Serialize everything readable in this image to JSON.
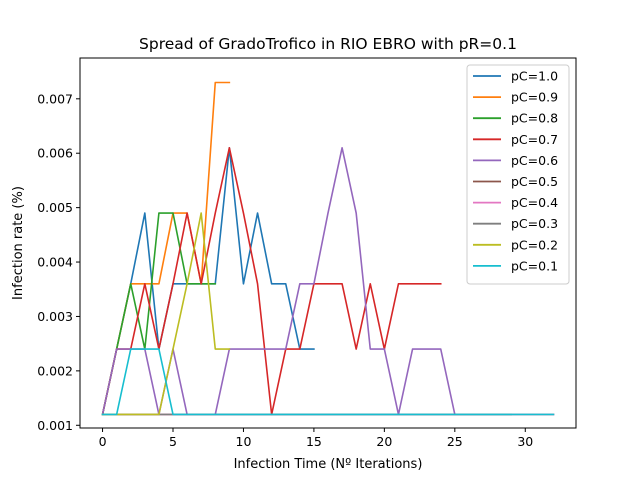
{
  "chart_data": {
    "type": "line",
    "title": "Spread of GradoTrofico in RIO EBRO with pR=0.1",
    "xlabel": "Infection Time (Nº Iterations)",
    "ylabel": "Infection rate (%)",
    "xlim": [
      -1.6,
      33.6
    ],
    "ylim": [
      0.00095,
      0.00775
    ],
    "xticks": [
      0,
      5,
      10,
      15,
      20,
      25,
      30
    ],
    "yticks": [
      0.001,
      0.002,
      0.003,
      0.004,
      0.005,
      0.006,
      0.007
    ],
    "ytick_labels": [
      "0.001",
      "0.002",
      "0.003",
      "0.004",
      "0.005",
      "0.006",
      "0.007"
    ],
    "legend_position": "top-right",
    "grid": false,
    "series": [
      {
        "name": "pC=1.0",
        "color": "#1f77b4",
        "x": [
          0,
          1,
          2,
          3,
          4,
          5,
          6,
          7,
          8,
          9,
          10,
          11,
          12,
          13,
          14,
          15
        ],
        "y": [
          0.0012,
          0.0024,
          0.0036,
          0.0049,
          0.0024,
          0.0036,
          0.0036,
          0.0036,
          0.0036,
          0.0061,
          0.0036,
          0.0049,
          0.0036,
          0.0036,
          0.0024,
          0.0024
        ]
      },
      {
        "name": "pC=0.9",
        "color": "#ff7f0e",
        "x": [
          0,
          1,
          2,
          3,
          4,
          5,
          6,
          7,
          8,
          9
        ],
        "y": [
          0.0012,
          0.0024,
          0.0036,
          0.0036,
          0.0036,
          0.0049,
          0.0049,
          0.0036,
          0.0073,
          0.0073
        ]
      },
      {
        "name": "pC=0.8",
        "color": "#2ca02c",
        "x": [
          0,
          1,
          2,
          3,
          4,
          5,
          6,
          7,
          8
        ],
        "y": [
          0.0012,
          0.0024,
          0.0036,
          0.0024,
          0.0049,
          0.0049,
          0.0036,
          0.0036,
          0.0036
        ]
      },
      {
        "name": "pC=0.7",
        "color": "#d62728",
        "x": [
          0,
          1,
          2,
          3,
          4,
          5,
          6,
          7,
          8,
          9,
          10,
          11,
          12,
          13,
          14,
          15,
          16,
          17,
          18,
          19,
          20,
          21,
          22,
          23,
          24
        ],
        "y": [
          0.0012,
          0.0024,
          0.0024,
          0.0036,
          0.0024,
          0.0036,
          0.0049,
          0.0036,
          0.0049,
          0.0061,
          0.0049,
          0.0036,
          0.0012,
          0.0024,
          0.0024,
          0.0036,
          0.0036,
          0.0036,
          0.0024,
          0.0036,
          0.0024,
          0.0036,
          0.0036,
          0.0036,
          0.0036
        ]
      },
      {
        "name": "pC=0.6",
        "color": "#9467bd",
        "x": [
          0,
          1,
          2,
          3,
          4,
          5,
          6,
          7,
          8,
          9,
          10,
          11,
          12,
          13,
          14,
          15,
          16,
          17,
          18,
          19,
          20,
          21,
          22,
          23,
          24,
          25,
          26,
          27,
          28,
          29
        ],
        "y": [
          0.0012,
          0.0024,
          0.0024,
          0.0024,
          0.0012,
          0.0024,
          0.0012,
          0.0012,
          0.0012,
          0.0024,
          0.0024,
          0.0024,
          0.0024,
          0.0024,
          0.0036,
          0.0036,
          0.0049,
          0.0061,
          0.0049,
          0.0024,
          0.0024,
          0.0012,
          0.0024,
          0.0024,
          0.0024,
          0.0012,
          0.0012,
          0.0012,
          0.0012,
          0.0012
        ]
      },
      {
        "name": "pC=0.5",
        "color": "#8c564b",
        "x": [
          0,
          1,
          2,
          3,
          4,
          5,
          6,
          7,
          8,
          9,
          10,
          11,
          12,
          13,
          14,
          15,
          16,
          17,
          18,
          19,
          20,
          21,
          22,
          23,
          24,
          25,
          26,
          27,
          28,
          29,
          30,
          31,
          32
        ],
        "y": [
          0.0012,
          0.0012,
          0.0012,
          0.0012,
          0.0012,
          0.0012,
          0.0012,
          0.0012,
          0.0012,
          0.0012,
          0.0012,
          0.0012,
          0.0012,
          0.0012,
          0.0012,
          0.0012,
          0.0012,
          0.0012,
          0.0012,
          0.0012,
          0.0012,
          0.0012,
          0.0012,
          0.0012,
          0.0012,
          0.0012,
          0.0012,
          0.0012,
          0.0012,
          0.0012,
          0.0012,
          0.0012,
          0.0012
        ]
      },
      {
        "name": "pC=0.4",
        "color": "#e377c2",
        "x": [
          0,
          1,
          2,
          3,
          4,
          5,
          6,
          7,
          8,
          9,
          10,
          11,
          12,
          13,
          14,
          15,
          16,
          17,
          18,
          19,
          20,
          21,
          22,
          23,
          24,
          25,
          26,
          27,
          28,
          29,
          30,
          31,
          32
        ],
        "y": [
          0.0012,
          0.0012,
          0.0012,
          0.0012,
          0.0012,
          0.0012,
          0.0012,
          0.0012,
          0.0012,
          0.0012,
          0.0012,
          0.0012,
          0.0012,
          0.0012,
          0.0012,
          0.0012,
          0.0012,
          0.0012,
          0.0012,
          0.0012,
          0.0012,
          0.0012,
          0.0012,
          0.0012,
          0.0012,
          0.0012,
          0.0012,
          0.0012,
          0.0012,
          0.0012,
          0.0012,
          0.0012,
          0.0012
        ]
      },
      {
        "name": "pC=0.3",
        "color": "#7f7f7f",
        "x": [
          0,
          1,
          2,
          3,
          4,
          5,
          6,
          7,
          8,
          9,
          10,
          11,
          12,
          13,
          14,
          15,
          16,
          17,
          18,
          19,
          20,
          21,
          22,
          23,
          24,
          25,
          26,
          27,
          28,
          29
        ],
        "y": [
          0.0012,
          0.0012,
          0.0012,
          0.0012,
          0.0012,
          0.0012,
          0.0012,
          0.0012,
          0.0012,
          0.0012,
          0.0012,
          0.0012,
          0.0012,
          0.0012,
          0.0012,
          0.0012,
          0.0012,
          0.0012,
          0.0012,
          0.0012,
          0.0012,
          0.0012,
          0.0012,
          0.0012,
          0.0012,
          0.0012,
          0.0012,
          0.0012,
          0.0012,
          0.0012
        ]
      },
      {
        "name": "pC=0.2",
        "color": "#bcbd22",
        "x": [
          0,
          1,
          2,
          3,
          4,
          5,
          6,
          7,
          8,
          9
        ],
        "y": [
          0.0012,
          0.0012,
          0.0012,
          0.0012,
          0.0012,
          0.0024,
          0.0036,
          0.0049,
          0.0024,
          0.0024
        ]
      },
      {
        "name": "pC=0.1",
        "color": "#17becf",
        "x": [
          0,
          1,
          2,
          3,
          4,
          5,
          6,
          7,
          8,
          9,
          10,
          11,
          12,
          13,
          14,
          15,
          16,
          17,
          18,
          19,
          20,
          21,
          22,
          23,
          24,
          25,
          26,
          27,
          28,
          29,
          30,
          31,
          32
        ],
        "y": [
          0.0012,
          0.0012,
          0.0024,
          0.0024,
          0.0024,
          0.0012,
          0.0012,
          0.0012,
          0.0012,
          0.0012,
          0.0012,
          0.0012,
          0.0012,
          0.0012,
          0.0012,
          0.0012,
          0.0012,
          0.0012,
          0.0012,
          0.0012,
          0.0012,
          0.0012,
          0.0012,
          0.0012,
          0.0012,
          0.0012,
          0.0012,
          0.0012,
          0.0012,
          0.0012,
          0.0012,
          0.0012,
          0.0012
        ]
      }
    ]
  }
}
